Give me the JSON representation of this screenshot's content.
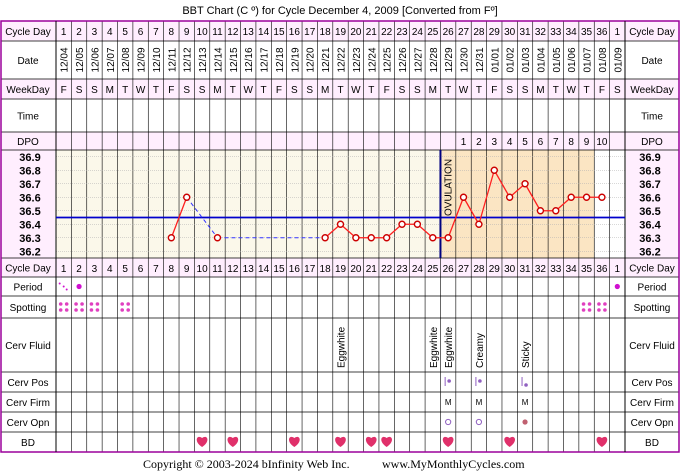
{
  "title": "BBT Chart (C º) for Cycle December 4, 2009  [Converted from Fº]",
  "footer": {
    "copyright": "Copyright © 2003-2024 bInfinity Web Inc.",
    "site": "www.MyMonthlyCycles.com"
  },
  "row_labels": {
    "cycle_day": "Cycle Day",
    "date": "Date",
    "weekday": "WeekDay",
    "time": "Time",
    "dpo": "DPO",
    "period": "Period",
    "spotting": "Spotting",
    "cerv_fluid": "Cerv Fluid",
    "cerv_pos": "Cerv Pos",
    "cerv_firm": "Cerv Firm",
    "cerv_opn": "Cerv Opn",
    "bd": "BD"
  },
  "colors": {
    "frame": "#9b009b",
    "header_bg": "#ffeefe",
    "pre_ovulation_bg": "#fbf8ea",
    "post_ovulation_bg": "#fbe5c3",
    "coverline": "#0000cc",
    "ovulation_line": "#000080",
    "temp_line": "#ff2020",
    "temp_dot": "#cc0000",
    "dashed_line": "#3333ff",
    "heart": "#e0306a",
    "spot_dot": "#e040c0",
    "period_dot": "#d010d0",
    "cerv_mark": "#9060c0"
  },
  "cycle_days": [
    "1",
    "2",
    "3",
    "4",
    "5",
    "6",
    "7",
    "8",
    "9",
    "10",
    "11",
    "12",
    "13",
    "14",
    "15",
    "16",
    "17",
    "18",
    "19",
    "20",
    "21",
    "22",
    "23",
    "24",
    "25",
    "26",
    "27",
    "28",
    "29",
    "30",
    "31",
    "32",
    "33",
    "34",
    "35",
    "36",
    "1"
  ],
  "dates": [
    "12/04",
    "12/05",
    "12/06",
    "12/07",
    "12/08",
    "12/09",
    "12/10",
    "12/11",
    "12/12",
    "12/13",
    "12/14",
    "12/15",
    "12/16",
    "12/17",
    "12/18",
    "12/19",
    "12/20",
    "12/21",
    "12/22",
    "12/23",
    "12/24",
    "12/25",
    "12/26",
    "12/27",
    "12/28",
    "12/29",
    "12/30",
    "12/31",
    "01/01",
    "01/02",
    "01/03",
    "01/04",
    "01/05",
    "01/06",
    "01/07",
    "01/08",
    "01/09"
  ],
  "weekdays": [
    "F",
    "S",
    "S",
    "M",
    "T",
    "W",
    "T",
    "F",
    "S",
    "S",
    "M",
    "T",
    "W",
    "T",
    "F",
    "S",
    "S",
    "M",
    "T",
    "W",
    "T",
    "F",
    "S",
    "S",
    "M",
    "T",
    "W",
    "T",
    "F",
    "S",
    "S",
    "M",
    "T",
    "W",
    "T",
    "F",
    "S"
  ],
  "dpo": [
    "",
    "",
    "",
    "",
    "",
    "",
    "",
    "",
    "",
    "",
    "",
    "",
    "",
    "",
    "",
    "",
    "",
    "",
    "",
    "",
    "",
    "",
    "",
    "",
    "",
    "",
    "1",
    "2",
    "3",
    "4",
    "5",
    "6",
    "7",
    "8",
    "9",
    "10",
    ""
  ],
  "ovulation": {
    "label": "OVULATION",
    "after_day_index": 25,
    "post_shading_through_index": 35
  },
  "chart_data": {
    "type": "line",
    "y_ticks": [
      "36.9",
      "36.8",
      "36.7",
      "36.6",
      "36.5",
      "36.4",
      "36.3",
      "36.2"
    ],
    "ylim": [
      36.15,
      36.95
    ],
    "coverline": 36.45,
    "temps": [
      null,
      null,
      null,
      null,
      null,
      null,
      null,
      36.3,
      36.6,
      null,
      36.3,
      null,
      null,
      null,
      null,
      null,
      null,
      36.3,
      36.4,
      36.3,
      36.3,
      36.3,
      36.4,
      36.4,
      36.3,
      36.3,
      36.6,
      36.4,
      36.8,
      36.6,
      36.7,
      36.5,
      36.5,
      36.6,
      36.6,
      36.6,
      null
    ],
    "dashed_segments": [
      [
        8,
        10
      ],
      [
        10,
        17
      ]
    ]
  },
  "period": [
    "spotting-dots",
    "dot",
    "",
    "",
    "",
    "",
    "",
    "",
    "",
    "",
    "",
    "",
    "",
    "",
    "",
    "",
    "",
    "",
    "",
    "",
    "",
    "",
    "",
    "",
    "",
    "",
    "",
    "",
    "",
    "",
    "",
    "",
    "",
    "",
    "",
    "",
    "dot"
  ],
  "spotting": [
    true,
    true,
    true,
    false,
    true,
    false,
    false,
    false,
    false,
    false,
    false,
    false,
    false,
    false,
    false,
    false,
    false,
    false,
    false,
    false,
    false,
    false,
    false,
    false,
    false,
    false,
    false,
    false,
    false,
    false,
    false,
    false,
    false,
    false,
    true,
    true,
    false
  ],
  "cerv_fluid": [
    "",
    "",
    "",
    "",
    "",
    "",
    "",
    "",
    "",
    "",
    "",
    "",
    "",
    "",
    "",
    "",
    "",
    "",
    "Eggwhite",
    "",
    "",
    "",
    "",
    "",
    "Eggwhite",
    "Eggwhite",
    "",
    "Creamy",
    "",
    "",
    "Sticky",
    "",
    "",
    "",
    "",
    "",
    ""
  ],
  "cerv_pos": [
    "",
    "",
    "",
    "",
    "",
    "",
    "",
    "",
    "",
    "",
    "",
    "",
    "",
    "",
    "",
    "",
    "",
    "",
    "",
    "",
    "",
    "",
    "",
    "",
    "",
    "mark",
    "",
    "mark",
    "",
    "",
    "mark",
    "",
    "",
    "",
    "",
    "",
    ""
  ],
  "cerv_firm": [
    "",
    "",
    "",
    "",
    "",
    "",
    "",
    "",
    "",
    "",
    "",
    "",
    "",
    "",
    "",
    "",
    "",
    "",
    "",
    "",
    "",
    "",
    "",
    "",
    "",
    "M",
    "",
    "M",
    "",
    "",
    "M",
    "",
    "",
    "",
    "",
    "",
    ""
  ],
  "cerv_opn": [
    "",
    "",
    "",
    "",
    "",
    "",
    "",
    "",
    "",
    "",
    "",
    "",
    "",
    "",
    "",
    "",
    "",
    "",
    "",
    "",
    "",
    "",
    "",
    "",
    "",
    "open",
    "",
    "open",
    "",
    "",
    "closed",
    "",
    "",
    "",
    "",
    "",
    ""
  ],
  "bd": [
    false,
    false,
    false,
    false,
    false,
    false,
    false,
    false,
    false,
    true,
    false,
    true,
    false,
    false,
    false,
    true,
    false,
    false,
    true,
    false,
    true,
    true,
    false,
    false,
    false,
    true,
    false,
    false,
    false,
    true,
    false,
    false,
    false,
    false,
    false,
    true,
    false
  ]
}
